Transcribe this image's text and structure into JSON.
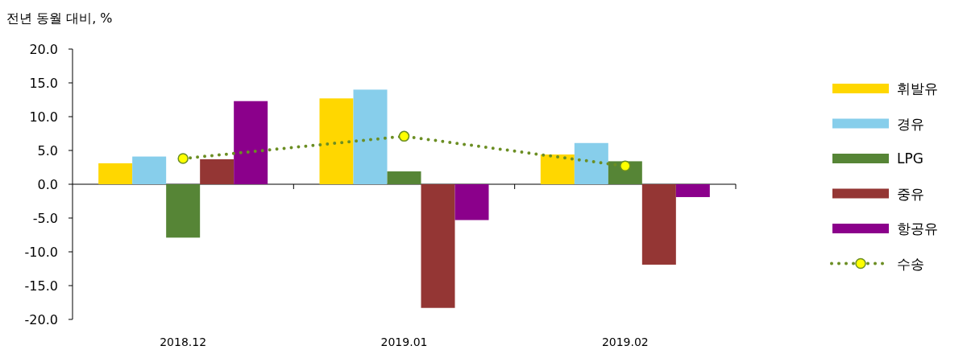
{
  "chart_data": {
    "type": "bar",
    "ylabel": "전년 동월 대비, %",
    "categories": [
      "2018.12",
      "2019.01",
      "2019.02"
    ],
    "ylim": [
      -20,
      20
    ],
    "yticks": [
      {
        "value": -20,
        "label": "-20.0"
      },
      {
        "value": -15,
        "label": "-15.0"
      },
      {
        "value": -10,
        "label": "-10.0"
      },
      {
        "value": -5,
        "label": "-5.0"
      },
      {
        "value": 0,
        "label": "0.0"
      },
      {
        "value": 5,
        "label": "5.0"
      },
      {
        "value": 10,
        "label": "10.0"
      },
      {
        "value": 15,
        "label": "15.0"
      },
      {
        "value": 20,
        "label": "20.0"
      }
    ],
    "legend": "right",
    "series": [
      {
        "name": "휘발유",
        "color": "#ffd700",
        "values": [
          3.1,
          12.7,
          4.4
        ]
      },
      {
        "name": "경유",
        "color": "#87ceeb",
        "values": [
          4.1,
          14.0,
          6.1
        ]
      },
      {
        "name": "LPG",
        "color": "#568536",
        "values": [
          -7.9,
          1.9,
          3.4
        ]
      },
      {
        "name": "중유",
        "color": "#943634",
        "values": [
          3.7,
          -18.3,
          -11.9
        ]
      },
      {
        "name": "항공유",
        "color": "#8b008b",
        "values": [
          12.3,
          -5.3,
          -1.9
        ]
      },
      {
        "name": "수송",
        "type": "line",
        "color": "#6b8e23",
        "marker": "circle",
        "line_style": "dotted",
        "values": [
          3.8,
          7.1,
          2.7
        ]
      }
    ]
  }
}
